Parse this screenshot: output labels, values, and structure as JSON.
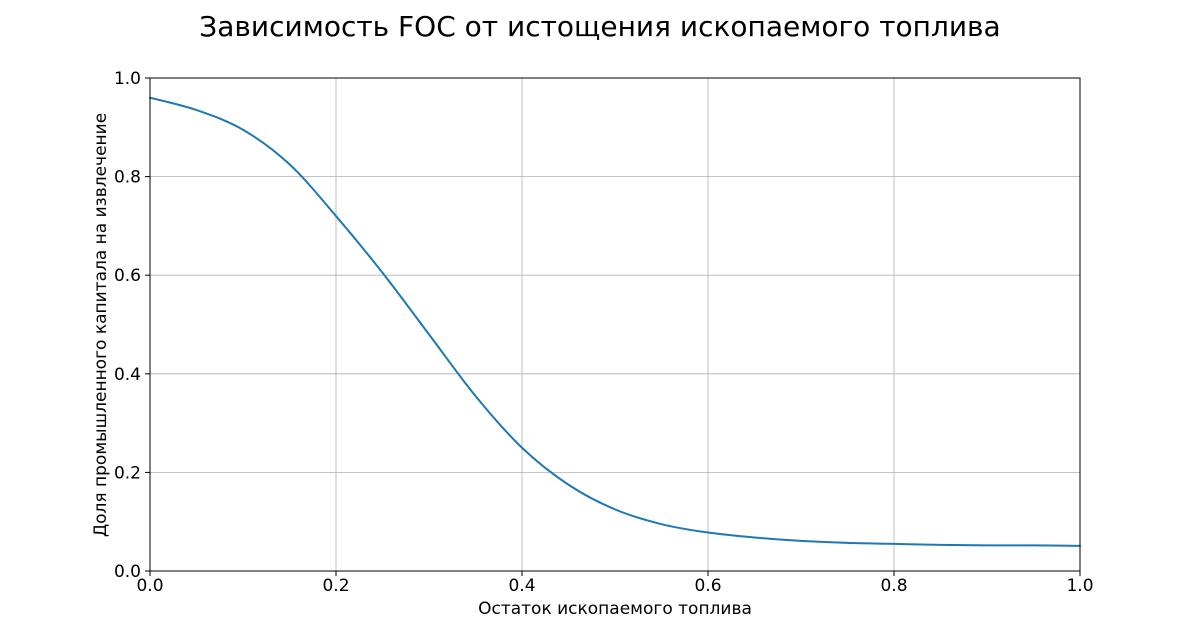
{
  "chart_data": {
    "type": "line",
    "title": "Зависимость FOC от истощения ископаемого топлива",
    "xlabel": "Остаток ископаемого топлива",
    "ylabel": "Доля промышленного капитала на извлечение",
    "xlim": [
      0.0,
      1.0
    ],
    "ylim": [
      0.0,
      1.0
    ],
    "x_ticks": [
      "0.0",
      "0.2",
      "0.4",
      "0.6",
      "0.8",
      "1.0"
    ],
    "y_ticks": [
      "0.0",
      "0.2",
      "0.4",
      "0.6",
      "0.8",
      "1.0"
    ],
    "grid": true,
    "series_color": "#1f77b4",
    "series": [
      {
        "x": [
          0.0,
          0.05,
          0.1,
          0.15,
          0.2,
          0.25,
          0.3,
          0.35,
          0.4,
          0.45,
          0.5,
          0.55,
          0.6,
          0.65,
          0.7,
          0.75,
          0.8,
          0.85,
          0.9,
          0.95,
          1.0
        ],
        "values": [
          0.96,
          0.935,
          0.895,
          0.825,
          0.72,
          0.605,
          0.48,
          0.355,
          0.25,
          0.175,
          0.125,
          0.095,
          0.078,
          0.068,
          0.061,
          0.057,
          0.055,
          0.053,
          0.052,
          0.052,
          0.051
        ]
      }
    ]
  }
}
